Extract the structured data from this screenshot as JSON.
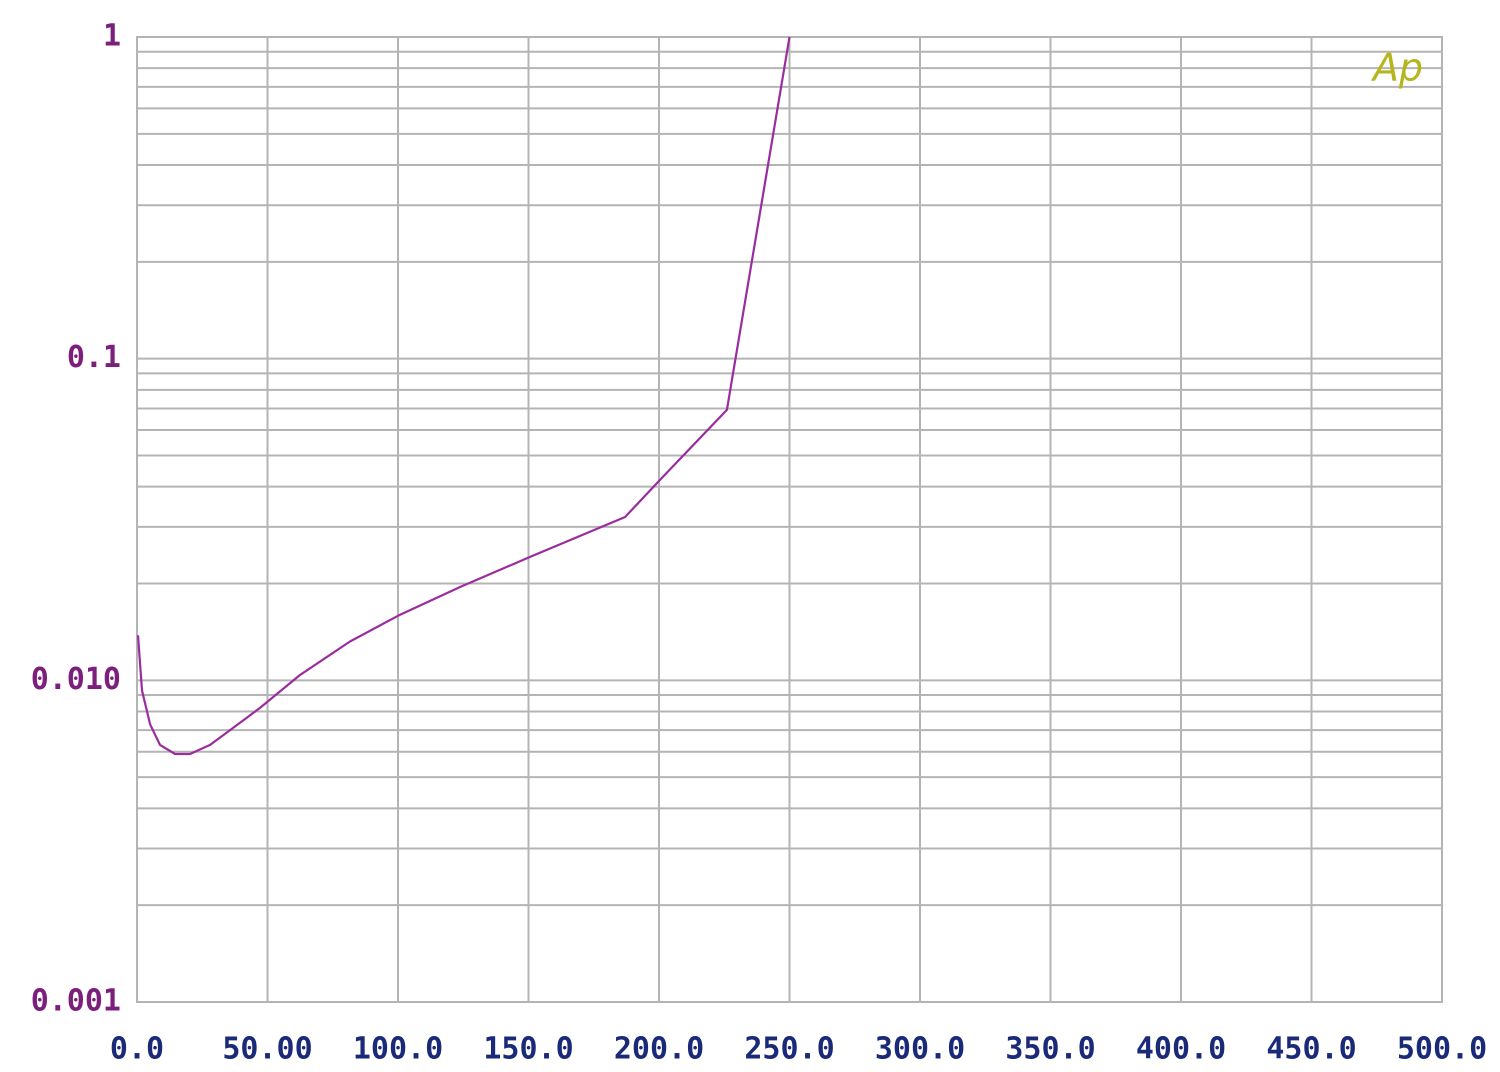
{
  "chart_data": {
    "type": "line",
    "logo": "Ap",
    "x": [
      0.4,
      1.9,
      5,
      8.8,
      14.6,
      20.3,
      28,
      35.6,
      47,
      62.5,
      81.6,
      100.8,
      123.8,
      150.6,
      187,
      200.4,
      226,
      250
    ],
    "series": [
      {
        "color": "#9a2d9e",
        "values": [
          0.0138,
          0.0093,
          0.0073,
          0.0063,
          0.0059,
          0.0059,
          0.0063,
          0.007,
          0.0082,
          0.0104,
          0.0132,
          0.016,
          0.0195,
          0.0242,
          0.0322,
          0.042,
          0.0693,
          1
        ]
      }
    ],
    "xlim": [
      0,
      500
    ],
    "xticks": [
      {
        "value": 0,
        "label": "0.0"
      },
      {
        "value": 50,
        "label": "50.00"
      },
      {
        "value": 100,
        "label": "100.0"
      },
      {
        "value": 150,
        "label": "150.0"
      },
      {
        "value": 200,
        "label": "200.0"
      },
      {
        "value": 250,
        "label": "250.0"
      },
      {
        "value": 300,
        "label": "300.0"
      },
      {
        "value": 350,
        "label": "350.0"
      },
      {
        "value": 400,
        "label": "400.0"
      },
      {
        "value": 450,
        "label": "450.0"
      },
      {
        "value": 500,
        "label": "500.0"
      }
    ],
    "ylim": [
      0.001,
      1
    ],
    "yticks": [
      0.001,
      {
        "value": 0.01,
        "label": "0.010"
      },
      0.1,
      1
    ],
    "y_log_scale": true,
    "grid": true,
    "minor_grid": true
  }
}
